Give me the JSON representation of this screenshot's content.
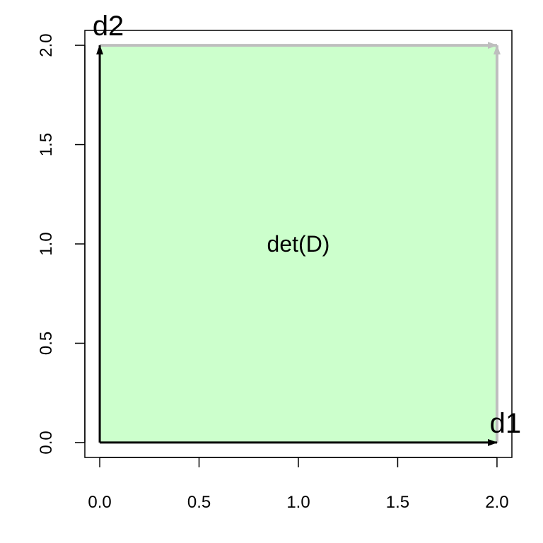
{
  "chart_data": {
    "type": "scatter",
    "xlim": [
      -0.075,
      2.075
    ],
    "ylim": [
      -0.075,
      2.075
    ],
    "x_ticks": [
      0.0,
      0.5,
      1.0,
      1.5,
      2.0
    ],
    "y_ticks": [
      0.0,
      0.5,
      1.0,
      1.5,
      2.0
    ],
    "x_tick_labels": [
      "0.0",
      "0.5",
      "1.0",
      "1.5",
      "2.0"
    ],
    "y_tick_labels": [
      "0.0",
      "0.5",
      "1.0",
      "1.5",
      "2.0"
    ],
    "polygon": {
      "points": [
        [
          0,
          0
        ],
        [
          2,
          0
        ],
        [
          2,
          2
        ],
        [
          0,
          2
        ]
      ],
      "fill": "#ccffcc",
      "label": "det(D)",
      "label_at": [
        1,
        1
      ]
    },
    "vectors": [
      {
        "label": "d1",
        "from": [
          0,
          0
        ],
        "to": [
          2,
          0
        ],
        "color": "#000000"
      },
      {
        "label": "d2",
        "from": [
          0,
          0
        ],
        "to": [
          0,
          2
        ],
        "color": "#000000"
      }
    ],
    "translated_vectors": [
      {
        "from": [
          0,
          2
        ],
        "to": [
          2,
          2
        ],
        "color": "#bebebe"
      },
      {
        "from": [
          2,
          0
        ],
        "to": [
          2,
          2
        ],
        "color": "#bebebe"
      }
    ],
    "grid": false,
    "legend": "none",
    "title": "",
    "xlabel": "",
    "ylabel": ""
  }
}
